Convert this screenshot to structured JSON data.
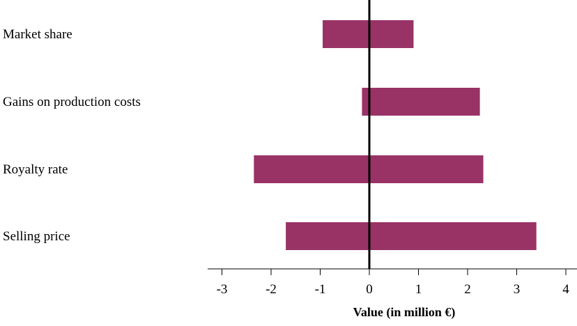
{
  "chart_data": {
    "type": "bar",
    "orientation": "horizontal",
    "style": "tornado",
    "categories": [
      "Market share",
      "Gains on production costs",
      "Royalty rate",
      "Selling price"
    ],
    "series": [
      {
        "values": [
          -0.95,
          -0.15,
          -2.35,
          -1.7
        ]
      },
      {
        "values": [
          0.9,
          2.25,
          2.32,
          3.4
        ]
      }
    ],
    "xlabel": "Value (in million €)",
    "ylabel": "",
    "xlim": [
      -3.3,
      4.2
    ],
    "xticks": [
      -3,
      -2,
      -1,
      0,
      1,
      2,
      3,
      4
    ],
    "bar_color": "#993366",
    "zero_line_color": "#000000",
    "grid": false,
    "legend": "none"
  }
}
